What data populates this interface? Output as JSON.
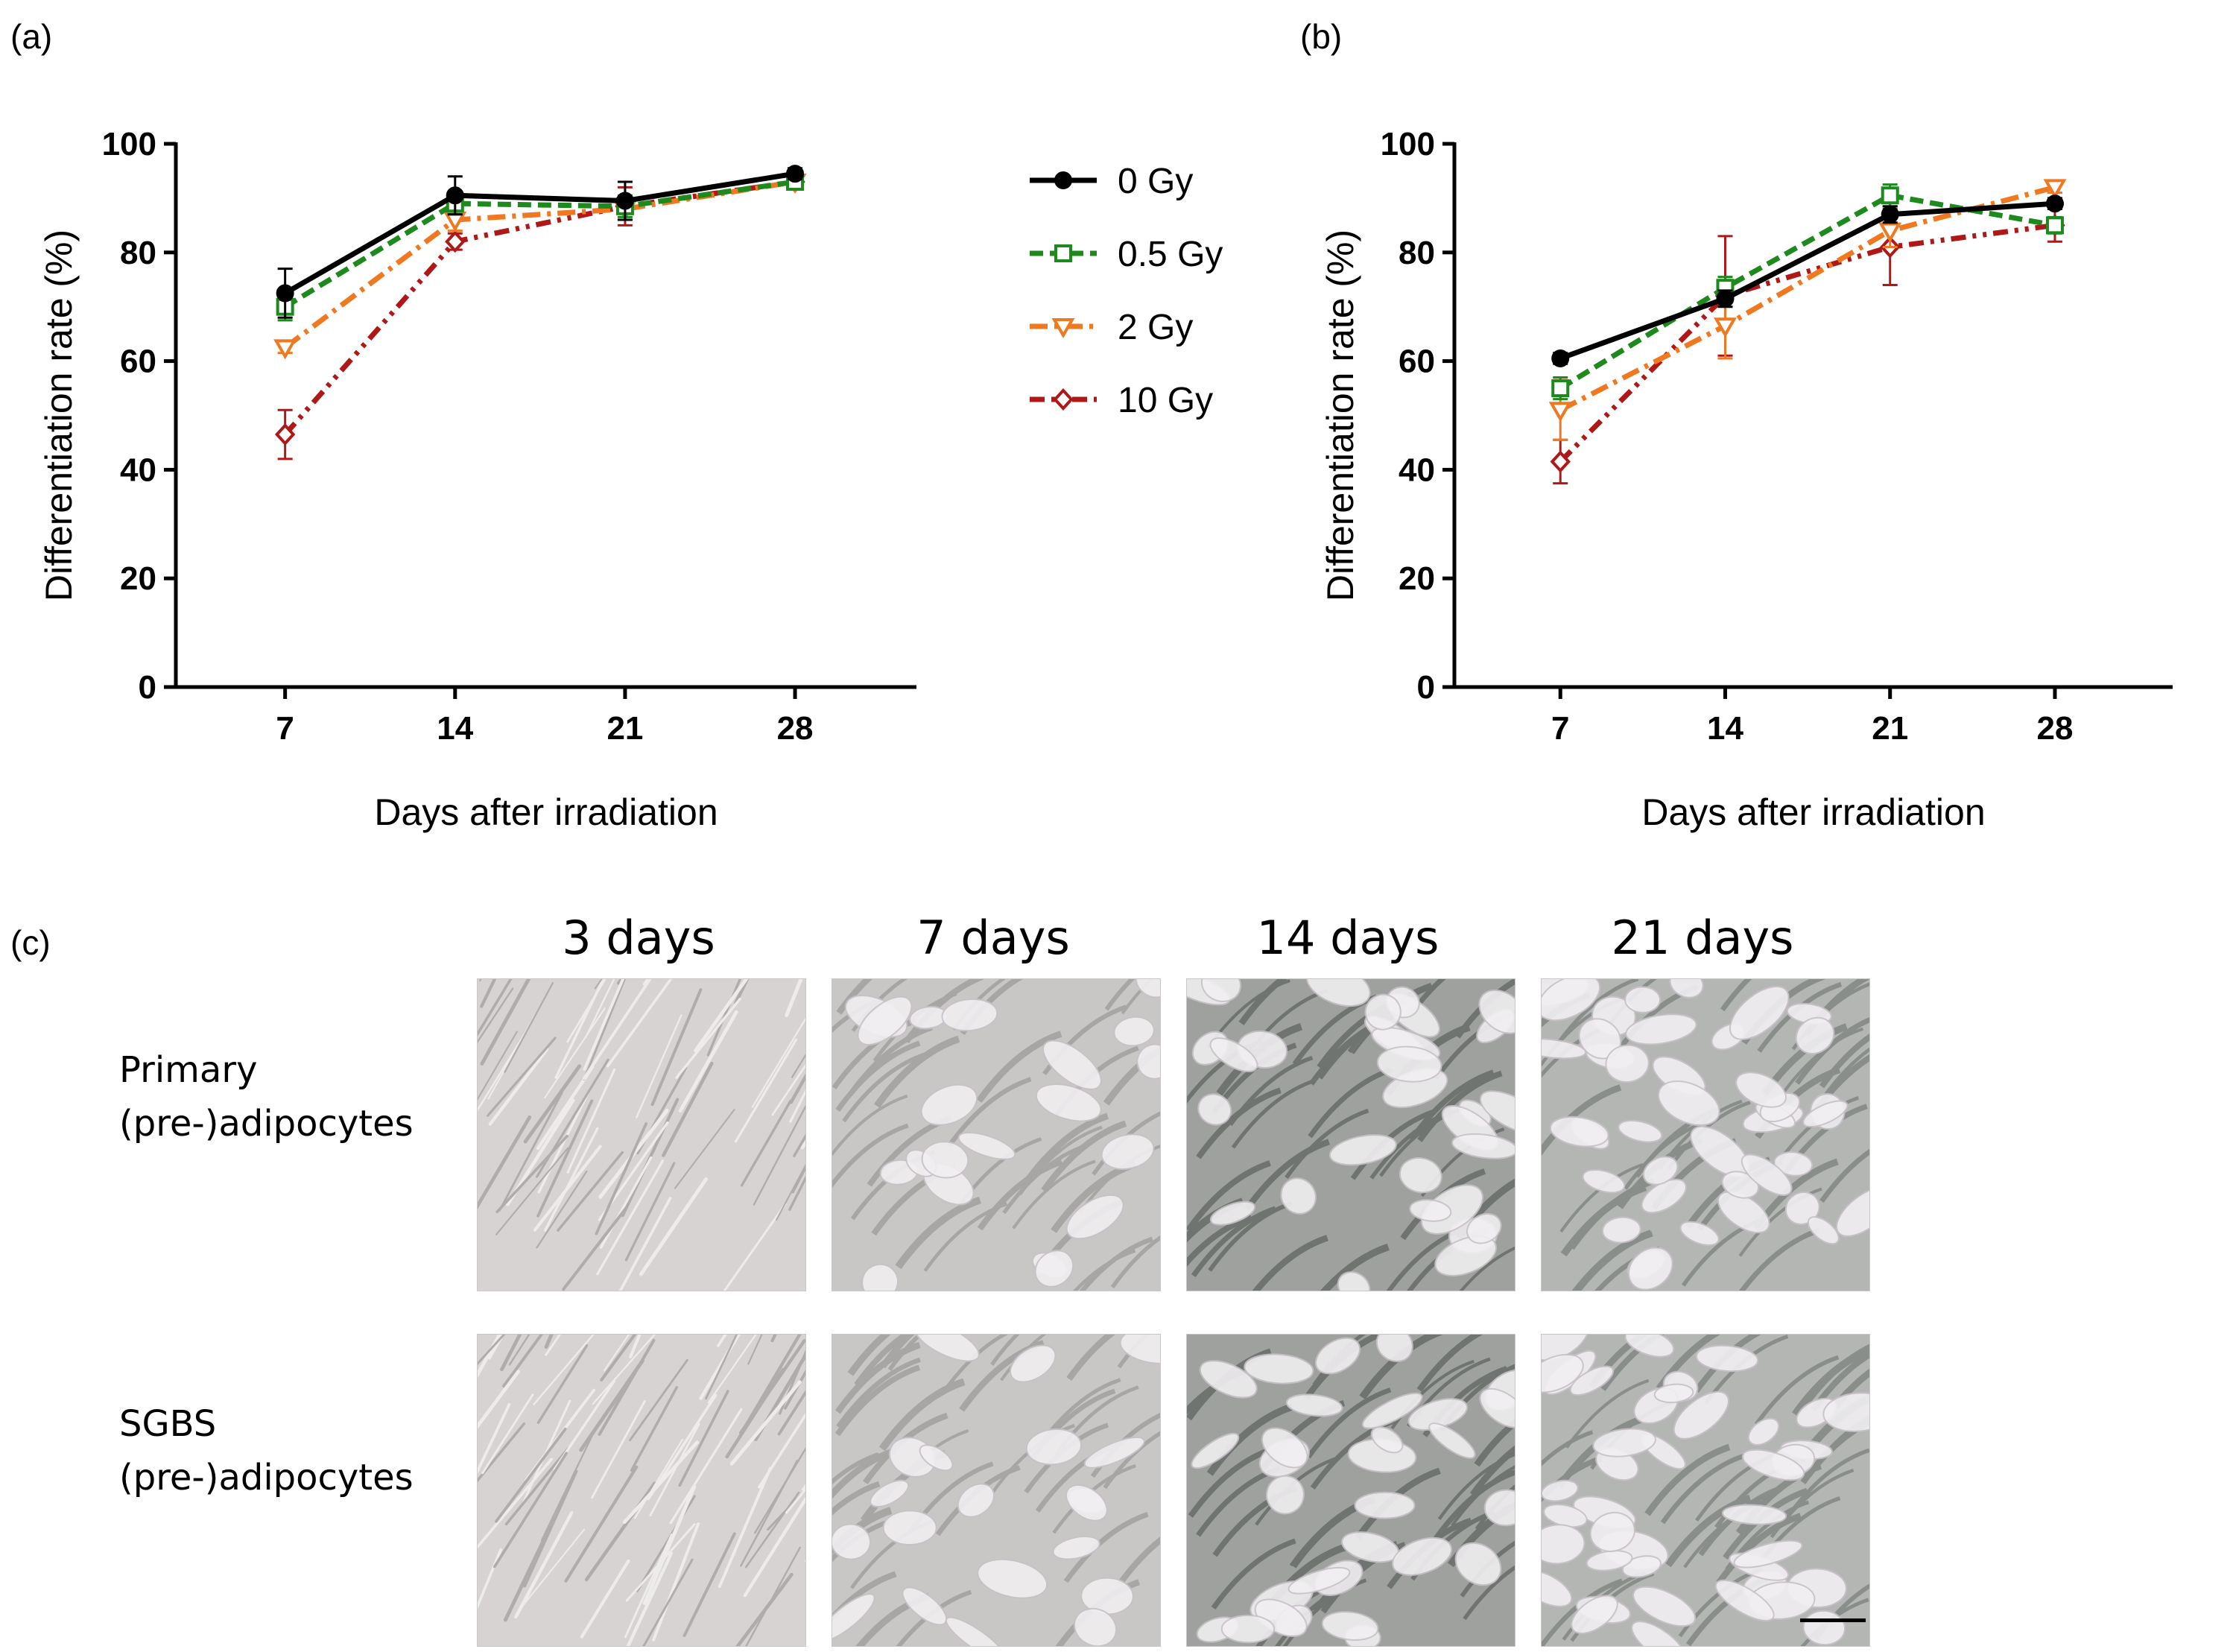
{
  "panels": {
    "a": "(a)",
    "b": "(b)",
    "c": "(c)"
  },
  "legend": [
    {
      "label": "0 Gy",
      "color": "#000000",
      "marker": "circle"
    },
    {
      "label": "0.5 Gy",
      "color": "#1e8a1e",
      "marker": "square"
    },
    {
      "label": "2 Gy",
      "color": "#f07820",
      "marker": "triangle-down"
    },
    {
      "label": "10 Gy",
      "color": "#b01818",
      "marker": "diamond"
    }
  ],
  "chart_data": [
    {
      "id": "a",
      "type": "line",
      "xlabel": "Days after irradiation",
      "ylabel": "Differentiation rate (%)",
      "x": [
        7,
        14,
        21,
        28
      ],
      "ylim": [
        0,
        100
      ],
      "yticks": [
        0,
        20,
        40,
        60,
        80,
        100
      ],
      "series": [
        {
          "name": "0 Gy",
          "values": [
            72.5,
            90.5,
            89.5,
            94.5
          ],
          "errors": [
            4.5,
            3.5,
            3.5,
            1.0
          ]
        },
        {
          "name": "0.5 Gy",
          "values": [
            70.0,
            89.0,
            88.5,
            93.0
          ],
          "errors": [
            2.5,
            2.0,
            2.0,
            1.0
          ]
        },
        {
          "name": "2 Gy",
          "values": [
            62.5,
            86.0,
            88.0,
            93.0
          ],
          "errors": [
            1.0,
            2.0,
            2.0,
            1.0
          ]
        },
        {
          "name": "10 Gy",
          "values": [
            46.5,
            82.0,
            88.5,
            93.0
          ],
          "errors": [
            4.5,
            1.5,
            3.5,
            1.0
          ]
        }
      ]
    },
    {
      "id": "b",
      "type": "line",
      "xlabel": "Days after irradiation",
      "ylabel": "Differentiation rate (%)",
      "x": [
        7,
        14,
        21,
        28
      ],
      "ylim": [
        0,
        100
      ],
      "yticks": [
        0,
        20,
        40,
        60,
        80,
        100
      ],
      "series": [
        {
          "name": "0 Gy",
          "values": [
            60.5,
            71.5,
            87.0,
            89.0
          ],
          "errors": [
            1.0,
            1.5,
            1.5,
            1.0
          ]
        },
        {
          "name": "0.5 Gy",
          "values": [
            55.0,
            73.5,
            90.5,
            85.0
          ],
          "errors": [
            2.0,
            2.0,
            2.0,
            1.5
          ]
        },
        {
          "name": "2 Gy",
          "values": [
            51.0,
            66.5,
            84.0,
            92.0
          ],
          "errors": [
            5.5,
            6.0,
            3.0,
            1.0
          ]
        },
        {
          "name": "10 Gy",
          "values": [
            41.5,
            72.0,
            81.0,
            85.0
          ],
          "errors": [
            4.0,
            11.0,
            7.0,
            3.0
          ]
        }
      ]
    }
  ],
  "micrographs": {
    "columns": [
      "3 days",
      "7 days",
      "14 days",
      "21 days"
    ],
    "rows": [
      {
        "label_line1": "Primary",
        "label_line2": "(pre-)adipocytes"
      },
      {
        "label_line1": "SGBS",
        "label_line2": "(pre-)adipocytes"
      }
    ]
  }
}
